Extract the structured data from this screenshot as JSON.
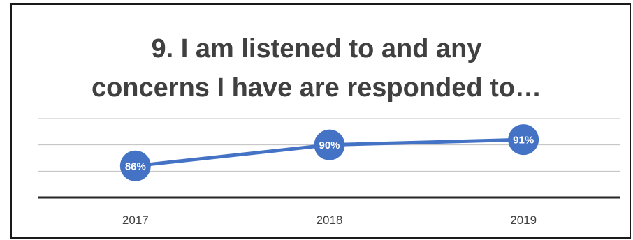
{
  "chart_data": {
    "type": "line",
    "title_lines": [
      "9. I am listened to and any",
      "concerns I have are responded to…"
    ],
    "categories": [
      "2017",
      "2018",
      "2019"
    ],
    "series": [
      {
        "values": [
          86,
          90,
          91
        ],
        "labels": [
          "86%",
          "90%",
          "91%"
        ]
      }
    ],
    "ylim": [
      80,
      95
    ],
    "grid": true,
    "legend": "none",
    "colors": {
      "series": "#4472C4",
      "grid": "#bfbfbf",
      "axis": "#262626",
      "text": "#404040",
      "label": "#ffffff"
    }
  }
}
